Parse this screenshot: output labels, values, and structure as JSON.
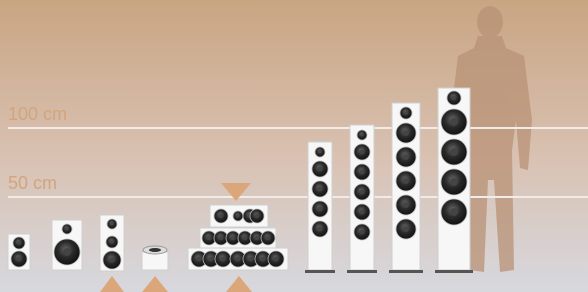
{
  "scale_labels": [
    "100 cm",
    "50 cm"
  ]
}
